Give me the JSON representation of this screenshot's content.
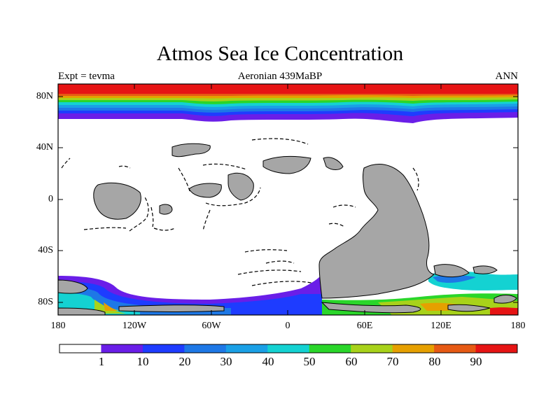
{
  "title": "Atmos Sea Ice Concentration",
  "experiment": "Expt = tevma",
  "period": "Aeronian 439MaBP",
  "season": "ANN",
  "axes": {
    "y_ticks": [
      "80N",
      "40N",
      "0",
      "40S",
      "80S"
    ],
    "x_ticks": [
      "180",
      "120W",
      "60W",
      "0",
      "60E",
      "120E",
      "180"
    ]
  },
  "colorbar": {
    "labels": [
      "1",
      "10",
      "20",
      "30",
      "40",
      "50",
      "60",
      "70",
      "80",
      "90"
    ],
    "colors": [
      "#ffffff",
      "#6a1ee8",
      "#1e3cff",
      "#1e78e6",
      "#1aa0e6",
      "#14d2d2",
      "#2ad62a",
      "#a8d21a",
      "#e6a000",
      "#e65a14",
      "#e61414"
    ]
  },
  "colors": {
    "land": "#a6a6a6",
    "ocean": "#ffffff"
  }
}
